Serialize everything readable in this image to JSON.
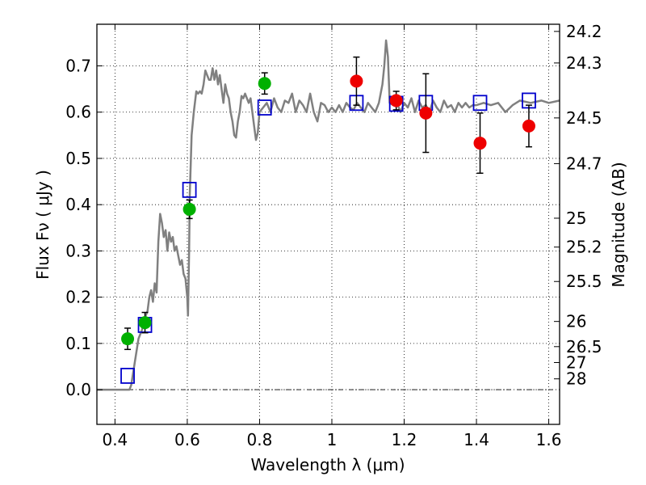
{
  "chart_data": {
    "type": "scatter",
    "xlabel": "Wavelength  λ (μm)",
    "ylabel": "Flux  Fν  ( μJy )",
    "y2label": "Magnitude (AB)",
    "xlim": [
      0.35,
      1.63
    ],
    "ylim": [
      -0.075,
      0.79
    ],
    "grid": true,
    "colors": {
      "model_line": "#808080",
      "green_points": "#00b000",
      "red_points": "#ee0000",
      "model_boxes": "#0000cc",
      "errorbar": "#000000"
    },
    "x_ticks": [
      {
        "v": 0.4,
        "label": "0.4"
      },
      {
        "v": 0.6,
        "label": "0.6"
      },
      {
        "v": 0.8,
        "label": "0.8"
      },
      {
        "v": 1.0,
        "label": "1"
      },
      {
        "v": 1.2,
        "label": "1.2"
      },
      {
        "v": 1.4,
        "label": "1.4"
      },
      {
        "v": 1.6,
        "label": "1.6"
      }
    ],
    "y_ticks": [
      {
        "v": 0.0,
        "label": "0.0"
      },
      {
        "v": 0.1,
        "label": "0.1"
      },
      {
        "v": 0.2,
        "label": "0.2"
      },
      {
        "v": 0.3,
        "label": "0.3"
      },
      {
        "v": 0.4,
        "label": "0.4"
      },
      {
        "v": 0.5,
        "label": "0.5"
      },
      {
        "v": 0.6,
        "label": "0.6"
      },
      {
        "v": 0.7,
        "label": "0.7"
      }
    ],
    "mag_ticks": [
      {
        "label": "24.2",
        "flux": 0.7745
      },
      {
        "label": "24.3",
        "flux": 0.7063
      },
      {
        "label": "24.5",
        "flux": 0.5875
      },
      {
        "label": "24.7",
        "flux": 0.4887
      },
      {
        "label": "25",
        "flux": 0.3707
      },
      {
        "label": "25.2",
        "flux": 0.3083
      },
      {
        "label": "25.5",
        "flux": 0.2339
      },
      {
        "label": "26",
        "flux": 0.1475
      },
      {
        "label": "26.5",
        "flux": 0.0931
      },
      {
        "label": "27",
        "flux": 0.0587
      },
      {
        "label": "28",
        "flux": 0.0234
      }
    ],
    "series": [
      {
        "kind": "line",
        "points": [
          [
            0.35,
            0.0
          ],
          [
            0.44,
            0.0
          ],
          [
            0.445,
            0.01
          ],
          [
            0.455,
            0.06
          ],
          [
            0.465,
            0.11
          ],
          [
            0.475,
            0.13
          ],
          [
            0.48,
            0.15
          ],
          [
            0.49,
            0.17
          ],
          [
            0.495,
            0.2
          ],
          [
            0.5,
            0.215
          ],
          [
            0.505,
            0.19
          ],
          [
            0.51,
            0.23
          ],
          [
            0.515,
            0.21
          ],
          [
            0.52,
            0.32
          ],
          [
            0.525,
            0.38
          ],
          [
            0.53,
            0.36
          ],
          [
            0.535,
            0.33
          ],
          [
            0.54,
            0.345
          ],
          [
            0.545,
            0.3
          ],
          [
            0.55,
            0.34
          ],
          [
            0.555,
            0.32
          ],
          [
            0.56,
            0.33
          ],
          [
            0.565,
            0.3
          ],
          [
            0.57,
            0.31
          ],
          [
            0.575,
            0.29
          ],
          [
            0.58,
            0.27
          ],
          [
            0.585,
            0.28
          ],
          [
            0.59,
            0.25
          ],
          [
            0.595,
            0.24
          ],
          [
            0.6,
            0.2
          ],
          [
            0.602,
            0.16
          ],
          [
            0.605,
            0.3
          ],
          [
            0.607,
            0.42
          ],
          [
            0.612,
            0.55
          ],
          [
            0.618,
            0.6
          ],
          [
            0.625,
            0.645
          ],
          [
            0.63,
            0.64
          ],
          [
            0.635,
            0.645
          ],
          [
            0.64,
            0.64
          ],
          [
            0.645,
            0.66
          ],
          [
            0.65,
            0.69
          ],
          [
            0.655,
            0.68
          ],
          [
            0.66,
            0.67
          ],
          [
            0.665,
            0.67
          ],
          [
            0.67,
            0.695
          ],
          [
            0.675,
            0.67
          ],
          [
            0.68,
            0.69
          ],
          [
            0.685,
            0.66
          ],
          [
            0.69,
            0.68
          ],
          [
            0.695,
            0.65
          ],
          [
            0.7,
            0.62
          ],
          [
            0.705,
            0.66
          ],
          [
            0.71,
            0.64
          ],
          [
            0.715,
            0.63
          ],
          [
            0.72,
            0.6
          ],
          [
            0.725,
            0.58
          ],
          [
            0.73,
            0.55
          ],
          [
            0.735,
            0.545
          ],
          [
            0.74,
            0.58
          ],
          [
            0.745,
            0.6
          ],
          [
            0.75,
            0.635
          ],
          [
            0.755,
            0.63
          ],
          [
            0.76,
            0.64
          ],
          [
            0.77,
            0.62
          ],
          [
            0.775,
            0.63
          ],
          [
            0.78,
            0.6
          ],
          [
            0.785,
            0.57
          ],
          [
            0.79,
            0.54
          ],
          [
            0.795,
            0.555
          ],
          [
            0.8,
            0.6
          ],
          [
            0.81,
            0.61
          ],
          [
            0.82,
            0.62
          ],
          [
            0.83,
            0.6
          ],
          [
            0.84,
            0.63
          ],
          [
            0.85,
            0.61
          ],
          [
            0.86,
            0.6
          ],
          [
            0.87,
            0.625
          ],
          [
            0.88,
            0.62
          ],
          [
            0.89,
            0.64
          ],
          [
            0.9,
            0.6
          ],
          [
            0.91,
            0.625
          ],
          [
            0.92,
            0.615
          ],
          [
            0.93,
            0.6
          ],
          [
            0.94,
            0.64
          ],
          [
            0.95,
            0.6
          ],
          [
            0.96,
            0.58
          ],
          [
            0.97,
            0.62
          ],
          [
            0.98,
            0.615
          ],
          [
            0.99,
            0.6
          ],
          [
            1.0,
            0.61
          ],
          [
            1.01,
            0.6
          ],
          [
            1.02,
            0.615
          ],
          [
            1.03,
            0.6
          ],
          [
            1.04,
            0.62
          ],
          [
            1.05,
            0.61
          ],
          [
            1.06,
            0.605
          ],
          [
            1.07,
            0.62
          ],
          [
            1.08,
            0.61
          ],
          [
            1.09,
            0.6
          ],
          [
            1.1,
            0.62
          ],
          [
            1.11,
            0.61
          ],
          [
            1.12,
            0.6
          ],
          [
            1.13,
            0.62
          ],
          [
            1.14,
            0.66
          ],
          [
            1.145,
            0.7
          ],
          [
            1.15,
            0.755
          ],
          [
            1.155,
            0.72
          ],
          [
            1.16,
            0.62
          ],
          [
            1.17,
            0.615
          ],
          [
            1.18,
            0.62
          ],
          [
            1.19,
            0.6
          ],
          [
            1.2,
            0.62
          ],
          [
            1.21,
            0.61
          ],
          [
            1.22,
            0.63
          ],
          [
            1.23,
            0.6
          ],
          [
            1.24,
            0.625
          ],
          [
            1.25,
            0.61
          ],
          [
            1.26,
            0.615
          ],
          [
            1.27,
            0.6
          ],
          [
            1.28,
            0.625
          ],
          [
            1.29,
            0.61
          ],
          [
            1.3,
            0.6
          ],
          [
            1.31,
            0.625
          ],
          [
            1.32,
            0.61
          ],
          [
            1.33,
            0.615
          ],
          [
            1.34,
            0.6
          ],
          [
            1.35,
            0.62
          ],
          [
            1.36,
            0.61
          ],
          [
            1.37,
            0.62
          ],
          [
            1.38,
            0.61
          ],
          [
            1.39,
            0.615
          ],
          [
            1.4,
            0.615
          ],
          [
            1.42,
            0.62
          ],
          [
            1.44,
            0.615
          ],
          [
            1.46,
            0.62
          ],
          [
            1.48,
            0.6
          ],
          [
            1.5,
            0.615
          ],
          [
            1.52,
            0.625
          ],
          [
            1.55,
            0.62
          ],
          [
            1.58,
            0.625
          ],
          [
            1.6,
            0.62
          ],
          [
            1.63,
            0.625
          ]
        ]
      },
      {
        "kind": "points-green",
        "points": [
          {
            "x": 0.435,
            "y": 0.11,
            "err": 0.023
          },
          {
            "x": 0.483,
            "y": 0.145,
            "err": 0.022
          },
          {
            "x": 0.606,
            "y": 0.39,
            "err": 0.02
          },
          {
            "x": 0.814,
            "y": 0.662,
            "err": 0.023
          }
        ]
      },
      {
        "kind": "points-red",
        "points": [
          {
            "x": 1.068,
            "y": 0.667,
            "err": 0.052
          },
          {
            "x": 1.178,
            "y": 0.625,
            "err": 0.02
          },
          {
            "x": 1.26,
            "y": 0.598,
            "err": 0.085
          },
          {
            "x": 1.41,
            "y": 0.533,
            "err": 0.065
          },
          {
            "x": 1.545,
            "y": 0.57,
            "err": 0.045
          }
        ]
      },
      {
        "kind": "model-boxes",
        "points": [
          {
            "x": 0.435,
            "y": 0.03
          },
          {
            "x": 0.483,
            "y": 0.14
          },
          {
            "x": 0.606,
            "y": 0.432
          },
          {
            "x": 0.814,
            "y": 0.61
          },
          {
            "x": 1.068,
            "y": 0.62
          },
          {
            "x": 1.178,
            "y": 0.618
          },
          {
            "x": 1.26,
            "y": 0.62
          },
          {
            "x": 1.41,
            "y": 0.62
          },
          {
            "x": 1.545,
            "y": 0.625
          }
        ]
      }
    ]
  }
}
